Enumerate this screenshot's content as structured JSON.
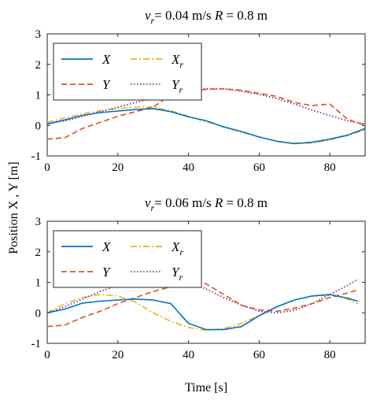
{
  "figure": {
    "ylabel": "Position  X , Y [m]",
    "xlabel": "Time [s]"
  },
  "chart_data": [
    {
      "type": "line",
      "title": {
        "v": "v",
        "sub": "r",
        "rest": "= 0.04 m/s ",
        "R": "R",
        "rest2": " = 0.8 m"
      },
      "xlim": [
        0,
        90
      ],
      "ylim": [
        -1,
        3
      ],
      "xticks": [
        "0",
        "20",
        "40",
        "60",
        "80"
      ],
      "yticks": [
        "-1",
        "0",
        "1",
        "2",
        "3"
      ],
      "grid": false,
      "legend_position": "top-left",
      "series": [
        {
          "name": "X",
          "name_sub": "",
          "color": "#0072BD",
          "dash": "solid",
          "x": [
            0,
            5,
            10,
            15,
            20,
            25,
            30,
            35,
            40,
            45,
            50,
            55,
            60,
            65,
            70,
            75,
            80,
            85,
            90
          ],
          "y": [
            0.05,
            0.18,
            0.33,
            0.42,
            0.47,
            0.52,
            0.55,
            0.45,
            0.28,
            0.15,
            -0.05,
            -0.2,
            -0.38,
            -0.52,
            -0.6,
            -0.55,
            -0.45,
            -0.32,
            -0.1
          ]
        },
        {
          "name": "X",
          "name_sub": "r",
          "color": "#EDB120",
          "dash": "dashdot",
          "x": [
            0,
            5,
            10,
            15,
            20,
            25,
            30,
            35,
            40,
            45,
            50,
            55,
            60,
            65,
            70,
            75,
            80,
            85,
            90
          ],
          "y": [
            0.1,
            0.25,
            0.38,
            0.48,
            0.55,
            0.6,
            0.6,
            0.48,
            0.3,
            0.12,
            -0.05,
            -0.22,
            -0.38,
            -0.52,
            -0.58,
            -0.58,
            -0.48,
            -0.33,
            -0.15
          ]
        },
        {
          "name": "Y",
          "name_sub": "",
          "color": "#D95319",
          "dash": "dashed",
          "x": [
            0,
            5,
            10,
            15,
            20,
            25,
            30,
            35,
            40,
            45,
            50,
            55,
            60,
            65,
            70,
            75,
            80,
            85,
            90
          ],
          "y": [
            -0.45,
            -0.4,
            -0.1,
            0.1,
            0.3,
            0.45,
            0.6,
            1.0,
            1.15,
            1.18,
            1.2,
            1.15,
            1.05,
            0.95,
            0.75,
            0.65,
            0.7,
            0.2,
            0.0
          ]
        },
        {
          "name": "Y",
          "name_sub": "r",
          "color": "#7E2F8E",
          "dash": "dotted",
          "x": [
            0,
            5,
            10,
            15,
            20,
            25,
            30,
            35,
            40,
            45,
            50,
            55,
            60,
            65,
            70,
            75,
            80,
            85,
            90
          ],
          "y": [
            0.05,
            0.15,
            0.3,
            0.45,
            0.6,
            0.75,
            0.9,
            1.05,
            1.15,
            1.2,
            1.2,
            1.12,
            1.02,
            0.88,
            0.7,
            0.5,
            0.32,
            0.15,
            0.05
          ]
        }
      ]
    },
    {
      "type": "line",
      "title": {
        "v": "v",
        "sub": "r",
        "rest": "= 0.06 m/s ",
        "R": "R",
        "rest2": " = 0.8 m"
      },
      "xlim": [
        0,
        90
      ],
      "ylim": [
        -1,
        3
      ],
      "xticks": [
        "0",
        "20",
        "40",
        "60",
        "80"
      ],
      "yticks": [
        "-1",
        "0",
        "1",
        "2",
        "3"
      ],
      "grid": false,
      "legend_position": "top-left",
      "series": [
        {
          "name": "X",
          "name_sub": "",
          "color": "#0072BD",
          "dash": "solid",
          "x": [
            0,
            5,
            10,
            15,
            20,
            25,
            30,
            35,
            40,
            45,
            50,
            55,
            60,
            65,
            70,
            75,
            80,
            85,
            88
          ],
          "y": [
            0.0,
            0.12,
            0.32,
            0.38,
            0.42,
            0.45,
            0.42,
            0.3,
            -0.35,
            -0.55,
            -0.55,
            -0.45,
            -0.1,
            0.2,
            0.42,
            0.55,
            0.6,
            0.48,
            0.38
          ]
        },
        {
          "name": "X",
          "name_sub": "r",
          "color": "#EDB120",
          "dash": "dashdot",
          "x": [
            0,
            5,
            10,
            15,
            20,
            25,
            30,
            35,
            40,
            45,
            50,
            55,
            60,
            65,
            70,
            75,
            80,
            85,
            88
          ],
          "y": [
            0.0,
            0.3,
            0.5,
            0.6,
            0.55,
            0.35,
            0.0,
            -0.28,
            -0.48,
            -0.58,
            -0.52,
            -0.35,
            -0.08,
            0.2,
            0.42,
            0.55,
            0.58,
            0.45,
            0.3
          ]
        },
        {
          "name": "Y",
          "name_sub": "",
          "color": "#D95319",
          "dash": "dashed",
          "x": [
            0,
            5,
            10,
            15,
            20,
            25,
            30,
            35,
            40,
            45,
            50,
            55,
            60,
            65,
            70,
            75,
            80,
            85,
            88
          ],
          "y": [
            -0.45,
            -0.4,
            -0.15,
            0.05,
            0.3,
            0.5,
            0.7,
            0.85,
            1.0,
            0.95,
            0.6,
            0.25,
            0.1,
            0.05,
            0.15,
            0.3,
            0.5,
            0.65,
            0.75
          ]
        },
        {
          "name": "Y",
          "name_sub": "r",
          "color": "#7E2F8E",
          "dash": "dotted",
          "x": [
            0,
            5,
            10,
            15,
            20,
            25,
            30,
            35,
            40,
            45,
            50,
            55,
            60,
            65,
            70,
            75,
            80,
            85,
            88
          ],
          "y": [
            0.0,
            0.2,
            0.45,
            0.7,
            0.9,
            1.05,
            1.15,
            1.15,
            1.0,
            0.78,
            0.5,
            0.25,
            0.05,
            0.0,
            0.08,
            0.3,
            0.6,
            0.9,
            1.1
          ]
        }
      ]
    }
  ]
}
